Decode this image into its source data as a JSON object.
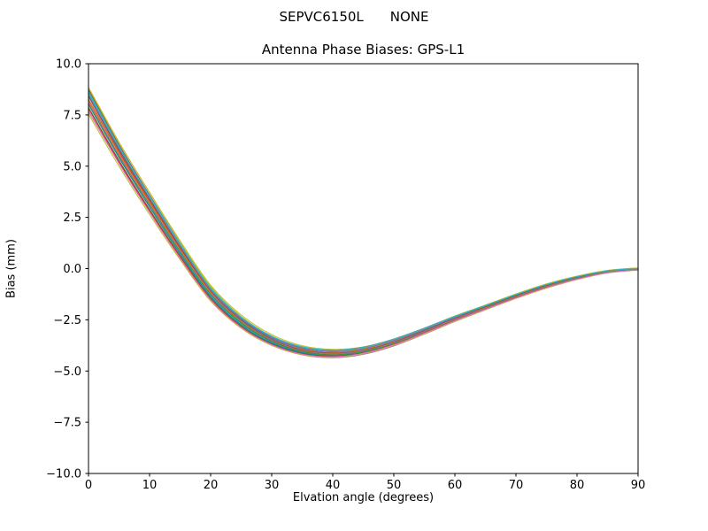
{
  "figure": {
    "title_left": "SEPVC6150L",
    "title_right": "NONE",
    "axes_title": "Antenna Phase Biases: GPS-L1"
  },
  "chart_data": {
    "type": "line",
    "title": "SEPVC6150L      NONE",
    "subtitle": "Antenna Phase Biases: GPS-L1",
    "xlabel": "Elvation angle (degrees)",
    "ylabel": "Bias (mm)",
    "xlim": [
      0,
      90
    ],
    "ylim": [
      -10,
      10
    ],
    "grid": false,
    "legend": "none",
    "x_ticks": [
      {
        "value": 0,
        "label": "0"
      },
      {
        "value": 10,
        "label": "10"
      },
      {
        "value": 20,
        "label": "20"
      },
      {
        "value": 30,
        "label": "30"
      },
      {
        "value": 40,
        "label": "40"
      },
      {
        "value": 50,
        "label": "50"
      },
      {
        "value": 60,
        "label": "60"
      },
      {
        "value": 70,
        "label": "70"
      },
      {
        "value": 80,
        "label": "80"
      },
      {
        "value": 90,
        "label": "90"
      }
    ],
    "y_ticks": [
      {
        "value": 10,
        "label": "10.0"
      },
      {
        "value": 7.5,
        "label": "7.5"
      },
      {
        "value": 5,
        "label": "5.0"
      },
      {
        "value": 2.5,
        "label": "2.5"
      },
      {
        "value": 0,
        "label": "0.0"
      },
      {
        "value": -2.5,
        "label": "−2.5"
      },
      {
        "value": -5,
        "label": "−5.0"
      },
      {
        "value": -7.5,
        "label": "−7.5"
      },
      {
        "value": -10,
        "label": "−10.0"
      }
    ],
    "x": [
      0,
      5,
      10,
      15,
      20,
      25,
      30,
      35,
      40,
      45,
      50,
      55,
      60,
      65,
      70,
      75,
      80,
      85,
      90
    ],
    "center_bias_mm": [
      8.2,
      5.6,
      3.2,
      0.9,
      -1.2,
      -2.6,
      -3.5,
      -4.0,
      -4.15,
      -4.0,
      -3.6,
      -3.05,
      -2.45,
      -1.9,
      -1.35,
      -0.85,
      -0.45,
      -0.15,
      -0.02
    ],
    "bundle_halfwidth_mm": [
      0.62,
      0.55,
      0.5,
      0.42,
      0.35,
      0.3,
      0.25,
      0.22,
      0.2,
      0.18,
      0.17,
      0.15,
      0.14,
      0.12,
      0.11,
      0.1,
      0.08,
      0.06,
      0.05
    ],
    "n_lines": 30,
    "line_factors": [
      0.1,
      -0.35,
      0.55,
      -0.15,
      0.3,
      -0.75,
      0.7,
      -0.5,
      1.0,
      -0.25,
      0.45,
      0.05,
      -0.6,
      0.2,
      -0.9,
      0.85,
      -0.05,
      0.38,
      -1.0,
      0.62,
      -0.42,
      0.15,
      -0.28,
      -0.68,
      0.5,
      0.25,
      -0.82,
      -0.12,
      0.93,
      0.78
    ],
    "colors": [
      "#1f77b4",
      "#ff7f0e",
      "#2ca02c",
      "#d62728",
      "#9467bd",
      "#8c564b",
      "#e377c2",
      "#7f7f7f",
      "#bcbd22",
      "#17becf"
    ],
    "spine_color": "#000000",
    "background_color": "#ffffff"
  }
}
